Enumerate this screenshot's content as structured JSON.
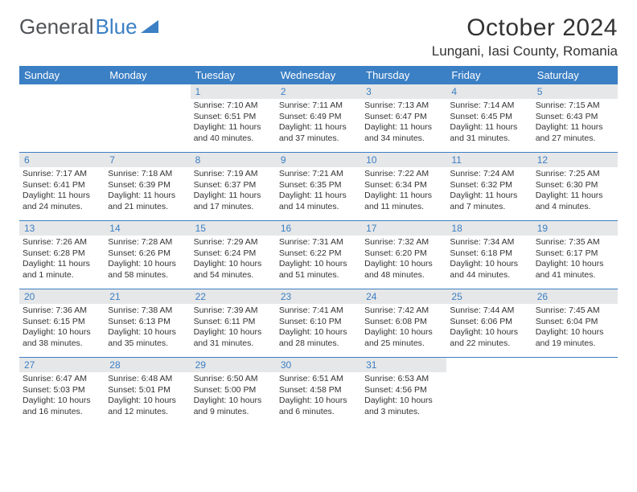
{
  "logo": {
    "text1": "General",
    "text2": "Blue"
  },
  "title": "October 2024",
  "location": "Lungani, Iasi County, Romania",
  "day_headers": [
    "Sunday",
    "Monday",
    "Tuesday",
    "Wednesday",
    "Thursday",
    "Friday",
    "Saturday"
  ],
  "colors": {
    "accent": "#3b7fc4",
    "header_gray": "#e6e7e8",
    "text": "#333333"
  },
  "weeks": [
    [
      {
        "n": "",
        "sr": "",
        "ss": "",
        "dl": ""
      },
      {
        "n": "",
        "sr": "",
        "ss": "",
        "dl": ""
      },
      {
        "n": "1",
        "sr": "Sunrise: 7:10 AM",
        "ss": "Sunset: 6:51 PM",
        "dl": "Daylight: 11 hours and 40 minutes."
      },
      {
        "n": "2",
        "sr": "Sunrise: 7:11 AM",
        "ss": "Sunset: 6:49 PM",
        "dl": "Daylight: 11 hours and 37 minutes."
      },
      {
        "n": "3",
        "sr": "Sunrise: 7:13 AM",
        "ss": "Sunset: 6:47 PM",
        "dl": "Daylight: 11 hours and 34 minutes."
      },
      {
        "n": "4",
        "sr": "Sunrise: 7:14 AM",
        "ss": "Sunset: 6:45 PM",
        "dl": "Daylight: 11 hours and 31 minutes."
      },
      {
        "n": "5",
        "sr": "Sunrise: 7:15 AM",
        "ss": "Sunset: 6:43 PM",
        "dl": "Daylight: 11 hours and 27 minutes."
      }
    ],
    [
      {
        "n": "6",
        "sr": "Sunrise: 7:17 AM",
        "ss": "Sunset: 6:41 PM",
        "dl": "Daylight: 11 hours and 24 minutes."
      },
      {
        "n": "7",
        "sr": "Sunrise: 7:18 AM",
        "ss": "Sunset: 6:39 PM",
        "dl": "Daylight: 11 hours and 21 minutes."
      },
      {
        "n": "8",
        "sr": "Sunrise: 7:19 AM",
        "ss": "Sunset: 6:37 PM",
        "dl": "Daylight: 11 hours and 17 minutes."
      },
      {
        "n": "9",
        "sr": "Sunrise: 7:21 AM",
        "ss": "Sunset: 6:35 PM",
        "dl": "Daylight: 11 hours and 14 minutes."
      },
      {
        "n": "10",
        "sr": "Sunrise: 7:22 AM",
        "ss": "Sunset: 6:34 PM",
        "dl": "Daylight: 11 hours and 11 minutes."
      },
      {
        "n": "11",
        "sr": "Sunrise: 7:24 AM",
        "ss": "Sunset: 6:32 PM",
        "dl": "Daylight: 11 hours and 7 minutes."
      },
      {
        "n": "12",
        "sr": "Sunrise: 7:25 AM",
        "ss": "Sunset: 6:30 PM",
        "dl": "Daylight: 11 hours and 4 minutes."
      }
    ],
    [
      {
        "n": "13",
        "sr": "Sunrise: 7:26 AM",
        "ss": "Sunset: 6:28 PM",
        "dl": "Daylight: 11 hours and 1 minute."
      },
      {
        "n": "14",
        "sr": "Sunrise: 7:28 AM",
        "ss": "Sunset: 6:26 PM",
        "dl": "Daylight: 10 hours and 58 minutes."
      },
      {
        "n": "15",
        "sr": "Sunrise: 7:29 AM",
        "ss": "Sunset: 6:24 PM",
        "dl": "Daylight: 10 hours and 54 minutes."
      },
      {
        "n": "16",
        "sr": "Sunrise: 7:31 AM",
        "ss": "Sunset: 6:22 PM",
        "dl": "Daylight: 10 hours and 51 minutes."
      },
      {
        "n": "17",
        "sr": "Sunrise: 7:32 AM",
        "ss": "Sunset: 6:20 PM",
        "dl": "Daylight: 10 hours and 48 minutes."
      },
      {
        "n": "18",
        "sr": "Sunrise: 7:34 AM",
        "ss": "Sunset: 6:18 PM",
        "dl": "Daylight: 10 hours and 44 minutes."
      },
      {
        "n": "19",
        "sr": "Sunrise: 7:35 AM",
        "ss": "Sunset: 6:17 PM",
        "dl": "Daylight: 10 hours and 41 minutes."
      }
    ],
    [
      {
        "n": "20",
        "sr": "Sunrise: 7:36 AM",
        "ss": "Sunset: 6:15 PM",
        "dl": "Daylight: 10 hours and 38 minutes."
      },
      {
        "n": "21",
        "sr": "Sunrise: 7:38 AM",
        "ss": "Sunset: 6:13 PM",
        "dl": "Daylight: 10 hours and 35 minutes."
      },
      {
        "n": "22",
        "sr": "Sunrise: 7:39 AM",
        "ss": "Sunset: 6:11 PM",
        "dl": "Daylight: 10 hours and 31 minutes."
      },
      {
        "n": "23",
        "sr": "Sunrise: 7:41 AM",
        "ss": "Sunset: 6:10 PM",
        "dl": "Daylight: 10 hours and 28 minutes."
      },
      {
        "n": "24",
        "sr": "Sunrise: 7:42 AM",
        "ss": "Sunset: 6:08 PM",
        "dl": "Daylight: 10 hours and 25 minutes."
      },
      {
        "n": "25",
        "sr": "Sunrise: 7:44 AM",
        "ss": "Sunset: 6:06 PM",
        "dl": "Daylight: 10 hours and 22 minutes."
      },
      {
        "n": "26",
        "sr": "Sunrise: 7:45 AM",
        "ss": "Sunset: 6:04 PM",
        "dl": "Daylight: 10 hours and 19 minutes."
      }
    ],
    [
      {
        "n": "27",
        "sr": "Sunrise: 6:47 AM",
        "ss": "Sunset: 5:03 PM",
        "dl": "Daylight: 10 hours and 16 minutes."
      },
      {
        "n": "28",
        "sr": "Sunrise: 6:48 AM",
        "ss": "Sunset: 5:01 PM",
        "dl": "Daylight: 10 hours and 12 minutes."
      },
      {
        "n": "29",
        "sr": "Sunrise: 6:50 AM",
        "ss": "Sunset: 5:00 PM",
        "dl": "Daylight: 10 hours and 9 minutes."
      },
      {
        "n": "30",
        "sr": "Sunrise: 6:51 AM",
        "ss": "Sunset: 4:58 PM",
        "dl": "Daylight: 10 hours and 6 minutes."
      },
      {
        "n": "31",
        "sr": "Sunrise: 6:53 AM",
        "ss": "Sunset: 4:56 PM",
        "dl": "Daylight: 10 hours and 3 minutes."
      },
      {
        "n": "",
        "sr": "",
        "ss": "",
        "dl": ""
      },
      {
        "n": "",
        "sr": "",
        "ss": "",
        "dl": ""
      }
    ]
  ]
}
